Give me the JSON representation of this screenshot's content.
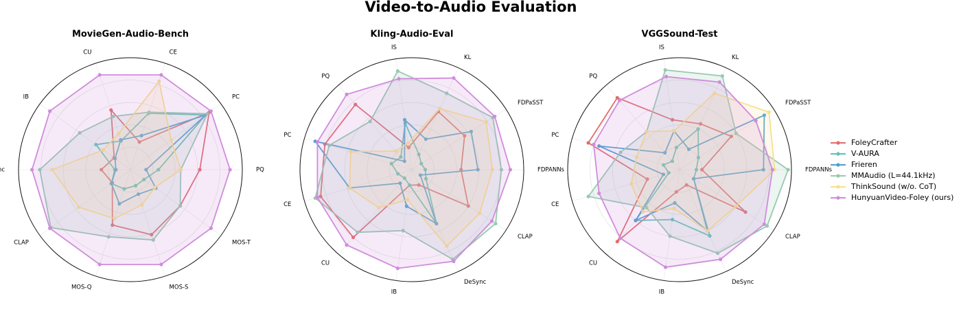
{
  "title": "Video-to-Audio Evaluation",
  "chart_data": [
    {
      "type": "radar",
      "title": "MovieGen-Audio-Bench",
      "categories": [
        "PQ",
        "PC",
        "CE",
        "CU",
        "IB",
        "DeSync",
        "CLAP",
        "MOS-Q",
        "MOS-S",
        "MOS-T"
      ],
      "rlim": [
        0,
        1
      ],
      "rgrid": [
        0.2,
        0.4,
        0.6,
        0.8
      ],
      "series": [
        {
          "name": "FoleyCrafter",
          "color": "#e36b6b",
          "fill": false,
          "values": [
            0.62,
            0.87,
            0.26,
            0.56,
            0.18,
            0.26,
            0.2,
            0.52,
            0.61,
            0.55
          ]
        },
        {
          "name": "V-AURA",
          "color": "#5cc3b6",
          "fill": false,
          "values": [
            0.25,
            0.83,
            0.53,
            0.27,
            0.38,
            0.14,
            0.21,
            0.18,
            0.15,
            0.15
          ]
        },
        {
          "name": "Frieren",
          "color": "#4c9fd1",
          "fill": false,
          "values": [
            0.14,
            0.83,
            0.32,
            0.28,
            0.17,
            0.13,
            0.21,
            0.32,
            0.23,
            0.28
          ]
        },
        {
          "name": "MMAudio (L=44.1kHz)",
          "color": "#98c9b0",
          "fill": true,
          "values": [
            0.45,
            0.85,
            0.54,
            0.5,
            0.56,
            0.81,
            0.88,
            0.63,
            0.66,
            0.55
          ]
        },
        {
          "name": "ThinkSound (w/o. CoT)",
          "color": "#f7e08e",
          "fill": true,
          "values": [
            0.45,
            0.45,
            0.83,
            0.34,
            0.3,
            0.7,
            0.57,
            0.46,
            0.33,
            0.27
          ]
        },
        {
          "name": "HunyuanVideo-Foley (ours)",
          "color": "#cf8cdb",
          "fill": true,
          "values": [
            0.89,
            0.89,
            0.89,
            0.89,
            0.89,
            0.88,
            0.89,
            0.89,
            0.89,
            0.89
          ]
        }
      ]
    },
    {
      "type": "radar",
      "title": "Kling-Audio-Eval",
      "categories": [
        "FDPANNs",
        "FDPaSST",
        "KL",
        "IS",
        "PQ",
        "PC",
        "CE",
        "CU",
        "IB",
        "DeSync",
        "CLAP"
      ],
      "rlim": [
        0,
        1
      ],
      "rgrid": [
        0.2,
        0.4,
        0.6,
        0.8
      ],
      "series": [
        {
          "name": "FoleyCrafter",
          "color": "#e36b6b",
          "fill": false,
          "values": [
            0.44,
            0.56,
            0.57,
            0.2,
            0.77,
            0.81,
            0.85,
            0.8,
            0.14,
            0.15,
            0.6
          ]
        },
        {
          "name": "V-AURA",
          "color": "#5cc3b6",
          "fill": false,
          "values": [
            0.12,
            0.1,
            0.15,
            0.42,
            0.15,
            0.19,
            0.13,
            0.1,
            0.14,
            0.53,
            0.15
          ]
        },
        {
          "name": "Frieren",
          "color": "#4c9fd1",
          "fill": false,
          "values": [
            0.59,
            0.63,
            0.3,
            0.45,
            0.1,
            0.9,
            0.58,
            0.16,
            0.33,
            0.53,
            0.09
          ]
        },
        {
          "name": "MMAudio (L=44.1kHz)",
          "color": "#98c9b0",
          "fill": true,
          "values": [
            0.8,
            0.86,
            0.75,
            0.89,
            0.57,
            0.77,
            0.9,
            0.74,
            0.55,
            0.88,
            0.89
          ]
        },
        {
          "name": "ThinkSound (w/o. CoT)",
          "color": "#f7e08e",
          "fill": true,
          "values": [
            0.72,
            0.79,
            0.6,
            0.24,
            0.22,
            0.57,
            0.58,
            0.45,
            0.27,
            0.75,
            0.72
          ]
        },
        {
          "name": "HunyuanVideo-Foley (ours)",
          "color": "#cf8cdb",
          "fill": true,
          "values": [
            0.88,
            0.88,
            0.9,
            0.82,
            0.89,
            0.88,
            0.88,
            0.89,
            0.89,
            0.9,
            0.85
          ]
        }
      ]
    },
    {
      "type": "radar",
      "title": "VGGSound-Test",
      "categories": [
        "FDPANNs",
        "FDPaSST",
        "KL",
        "IS",
        "PQ",
        "PC",
        "CE",
        "CU",
        "IB",
        "DeSync",
        "CLAP"
      ],
      "rlim": [
        0,
        1
      ],
      "rgrid": [
        0.2,
        0.4,
        0.6,
        0.8
      ],
      "series": [
        {
          "name": "FoleyCrafter",
          "color": "#e36b6b",
          "fill": false,
          "values": [
            0.2,
            0.55,
            0.45,
            0.45,
            0.85,
            0.85,
            0.3,
            0.85,
            0.2,
            0.15,
            0.7
          ]
        },
        {
          "name": "V-AURA",
          "color": "#5cc3b6",
          "fill": false,
          "values": [
            0.15,
            0.2,
            0.4,
            0.2,
            0.1,
            0.15,
            0.1,
            0.6,
            0.45,
            0.65,
            0.15
          ]
        },
        {
          "name": "Frieren",
          "color": "#4c9fd1",
          "fill": false,
          "values": [
            0.75,
            0.9,
            0.2,
            0.35,
            0.2,
            0.75,
            0.15,
            0.6,
            0.3,
            0.6,
            0.15
          ]
        },
        {
          "name": "MMAudio (L=44.1kHz)",
          "color": "#98c9b0",
          "fill": true,
          "values": [
            0.97,
            0.6,
            0.92,
            0.9,
            0.45,
            0.55,
            0.85,
            0.45,
            0.6,
            0.82,
            0.93
          ]
        },
        {
          "name": "ThinkSound (w/o. CoT)",
          "color": "#f7e08e",
          "fill": true,
          "values": [
            0.85,
            0.95,
            0.75,
            0.35,
            0.45,
            0.4,
            0.45,
            0.5,
            0.35,
            0.6,
            0.6
          ]
        },
        {
          "name": "HunyuanVideo-Foley (ours)",
          "color": "#cf8cdb",
          "fill": true,
          "values": [
            0.83,
            0.81,
            0.86,
            0.84,
            0.82,
            0.8,
            0.75,
            0.81,
            0.88,
            0.88,
            0.9
          ]
        }
      ]
    }
  ]
}
